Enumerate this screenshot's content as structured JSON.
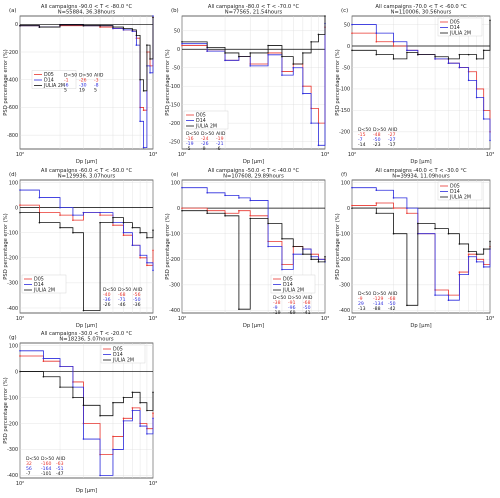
{
  "figure": {
    "common": {
      "xlabel": "Dp [μm]",
      "ylabel": "PSD percentage error (%)",
      "legend_entries": [
        "D05",
        "D14",
        "JULIA 2M"
      ],
      "table_headers": [
        "D<50",
        "D>50",
        "AIID"
      ],
      "series_colors": {
        "D05": "#e8352e",
        "D14": "#2b2bdd",
        "JULIA 2M": "#111111"
      }
    }
  },
  "chart_data": [
    {
      "type": "line",
      "panel": "(a)",
      "title": "All campaigns -90.0 < T < -80.0 °C",
      "subtitle": "N=55884, 36.38hours",
      "x_scale": "log",
      "xlim": [
        100,
        1000
      ],
      "x_ticks": [
        "10²",
        "10³"
      ],
      "ylim": [
        -900,
        60
      ],
      "y_ticks": [
        0,
        -200,
        -400,
        -600,
        -800
      ],
      "legend_position": "center",
      "table": [
        [
          "-1",
          "-26",
          "-3"
        ],
        [
          "-6",
          "-30",
          "-8"
        ],
        [
          "5",
          "19",
          "5"
        ]
      ],
      "series": [
        {
          "name": "D05",
          "x": [
            100,
            140,
            200,
            300,
            400,
            500,
            600,
            700,
            750,
            800,
            850,
            900,
            950,
            1000
          ],
          "y": [
            -10,
            -20,
            -10,
            -10,
            -20,
            -30,
            -40,
            -50,
            -100,
            -600,
            -620,
            -200,
            -300,
            50
          ]
        },
        {
          "name": "D14",
          "x": [
            100,
            140,
            200,
            300,
            400,
            500,
            600,
            700,
            750,
            800,
            850,
            900,
            950,
            1000
          ],
          "y": [
            -10,
            -20,
            -5,
            -10,
            -10,
            -30,
            -40,
            -50,
            -150,
            -700,
            -890,
            -300,
            -350,
            60
          ]
        },
        {
          "name": "JULIA 2M",
          "x": [
            100,
            140,
            200,
            300,
            400,
            500,
            600,
            700,
            750,
            800,
            850,
            900,
            950,
            1000
          ],
          "y": [
            -10,
            -20,
            -5,
            -10,
            -10,
            -20,
            -30,
            -40,
            -80,
            -400,
            -480,
            -150,
            -250,
            50
          ]
        }
      ]
    },
    {
      "type": "line",
      "panel": "(b)",
      "title": "All campaigns -80.0 < T < -70.0 °C",
      "subtitle": "N=77565, 21.54hours",
      "x_scale": "log",
      "xlim": [
        100,
        1000
      ],
      "x_ticks": [
        "10²",
        "10³"
      ],
      "ylim": [
        -270,
        90
      ],
      "y_ticks": [
        50,
        0,
        -50,
        -100,
        -150,
        -200,
        -250
      ],
      "legend_position": "lower-left",
      "table": [
        [
          "-16",
          "-24",
          "-19"
        ],
        [
          "-19",
          "-26",
          "-21"
        ],
        [
          "-5",
          "-9",
          "-6"
        ]
      ],
      "series": [
        {
          "name": "D05",
          "x": [
            100,
            150,
            200,
            250,
            300,
            400,
            500,
            600,
            700,
            800,
            900,
            1000
          ],
          "y": [
            10,
            -5,
            -30,
            -20,
            -40,
            -10,
            -60,
            -40,
            -100,
            -160,
            -200,
            60
          ]
        },
        {
          "name": "D14",
          "x": [
            100,
            150,
            200,
            250,
            300,
            400,
            500,
            600,
            700,
            800,
            900,
            1000
          ],
          "y": [
            15,
            -5,
            -30,
            -20,
            -45,
            -15,
            -70,
            -50,
            -120,
            -200,
            -260,
            70
          ]
        },
        {
          "name": "JULIA 2M",
          "x": [
            100,
            150,
            200,
            250,
            300,
            400,
            500,
            600,
            700,
            800,
            900,
            1000
          ],
          "y": [
            20,
            5,
            -10,
            -20,
            -10,
            10,
            -20,
            -40,
            -10,
            20,
            40,
            90
          ]
        }
      ]
    },
    {
      "type": "line",
      "panel": "(c)",
      "title": "All campaigns -70.0 < T < -60.0 °C",
      "subtitle": "N=110006, 30.56hours",
      "x_scale": "log",
      "xlim": [
        100,
        1000
      ],
      "x_ticks": [
        "10²",
        "10³"
      ],
      "ylim": [
        -240,
        70
      ],
      "y_ticks": [
        50,
        0,
        -50,
        -100,
        -150,
        -200
      ],
      "legend_position": "top-right",
      "table": [
        [
          "-15",
          "-48",
          "-27"
        ],
        [
          "-7",
          "-50",
          "-27"
        ],
        [
          "-14",
          "-23",
          "-17"
        ]
      ],
      "series": [
        {
          "name": "D05",
          "x": [
            100,
            150,
            200,
            250,
            300,
            400,
            500,
            600,
            700,
            800,
            900,
            1000
          ],
          "y": [
            30,
            10,
            0,
            -10,
            -20,
            -30,
            -40,
            -50,
            -60,
            -100,
            -150,
            -200
          ]
        },
        {
          "name": "D14",
          "x": [
            100,
            150,
            200,
            250,
            300,
            400,
            500,
            600,
            700,
            800,
            900,
            1000
          ],
          "y": [
            50,
            30,
            10,
            -10,
            -20,
            -30,
            -40,
            -50,
            -80,
            -120,
            -170,
            -220
          ]
        },
        {
          "name": "JULIA 2M",
          "x": [
            100,
            150,
            200,
            250,
            300,
            400,
            500,
            600,
            700,
            800,
            900,
            1000
          ],
          "y": [
            -10,
            -20,
            -30,
            -15,
            -20,
            -25,
            -30,
            -20,
            -20,
            -30,
            -10,
            60
          ]
        }
      ]
    },
    {
      "type": "line",
      "panel": "(d)",
      "title": "All campaigns -60.0 < T < -50.0 °C",
      "subtitle": "N=129936, 3.07hours",
      "x_scale": "log",
      "xlim": [
        100,
        1000
      ],
      "x_ticks": [
        "10²",
        "10³"
      ],
      "ylim": [
        -420,
        110
      ],
      "y_ticks": [
        100,
        0,
        -100,
        -200,
        -300,
        -400
      ],
      "legend_position": "lower-left",
      "table": [
        [
          "-40",
          "-68",
          "-56"
        ],
        [
          "-36",
          "-71",
          "-50"
        ],
        [
          "-26",
          "-46",
          "-36"
        ]
      ],
      "series": [
        {
          "name": "D05",
          "x": [
            100,
            140,
            200,
            250,
            300,
            400,
            500,
            600,
            700,
            800,
            900,
            1000
          ],
          "y": [
            10,
            -20,
            -30,
            -50,
            -20,
            -30,
            -70,
            -110,
            -150,
            -200,
            -230,
            -170
          ]
        },
        {
          "name": "D14",
          "x": [
            100,
            140,
            200,
            250,
            300,
            400,
            500,
            600,
            700,
            800,
            900,
            1000
          ],
          "y": [
            70,
            40,
            0,
            -30,
            -20,
            -20,
            -60,
            -100,
            -150,
            -190,
            -220,
            -250
          ]
        },
        {
          "name": "JULIA 2M",
          "x": [
            100,
            140,
            200,
            250,
            300,
            400,
            500,
            600,
            700,
            800,
            900,
            1000
          ],
          "y": [
            -20,
            -60,
            -80,
            -100,
            -410,
            -60,
            -40,
            -60,
            -80,
            -100,
            -120,
            -90
          ]
        }
      ]
    },
    {
      "type": "line",
      "panel": "(e)",
      "title": "All campaigns -50.0 < T < -40.0 °C",
      "subtitle": "N=107608, 29.89hours",
      "x_scale": "log",
      "xlim": [
        100,
        1000
      ],
      "x_ticks": [
        "10²",
        "10³"
      ],
      "ylim": [
        -410,
        110
      ],
      "y_ticks": [
        100,
        0,
        -100,
        -200,
        -300,
        -400
      ],
      "legend_position": "lower-right",
      "table": [
        [
          "-38",
          "-91",
          "-68"
        ],
        [
          "-9",
          "-96",
          "-50"
        ],
        [
          "-19",
          "-69",
          "-41"
        ]
      ],
      "series": [
        {
          "name": "D05",
          "x": [
            100,
            150,
            200,
            250,
            300,
            400,
            500,
            600,
            700,
            800,
            900,
            1000
          ],
          "y": [
            0,
            -10,
            -20,
            -10,
            -30,
            -130,
            -220,
            -150,
            -160,
            -180,
            -200,
            -200
          ]
        },
        {
          "name": "D14",
          "x": [
            100,
            150,
            200,
            250,
            300,
            400,
            500,
            600,
            700,
            800,
            900,
            1000
          ],
          "y": [
            80,
            60,
            50,
            40,
            30,
            -150,
            -240,
            -180,
            -160,
            -190,
            -200,
            -210
          ]
        },
        {
          "name": "JULIA 2M",
          "x": [
            100,
            150,
            200,
            250,
            300,
            400,
            500,
            600,
            700,
            800,
            900,
            1000
          ],
          "y": [
            -10,
            -20,
            -30,
            -395,
            -40,
            -60,
            -120,
            -150,
            -180,
            -200,
            -210,
            -190
          ]
        }
      ]
    },
    {
      "type": "line",
      "panel": "(f)",
      "title": "All campaigns -40.0 < T < -30.0 °C",
      "subtitle": "N=39934, 11.09hours",
      "x_scale": "log",
      "xlim": [
        100,
        1000
      ],
      "x_ticks": [
        "10²",
        "10³"
      ],
      "ylim": [
        -410,
        110
      ],
      "y_ticks": [
        100,
        0,
        -100,
        -200,
        -300,
        -400
      ],
      "legend_position": "top-right",
      "table": [
        [
          "-9",
          "-129",
          "-68"
        ],
        [
          "29",
          "-134",
          "-50"
        ],
        [
          "-13",
          "-88",
          "-42"
        ]
      ],
      "series": [
        {
          "name": "D05",
          "x": [
            100,
            150,
            200,
            250,
            300,
            400,
            500,
            600,
            700,
            800,
            900,
            1000
          ],
          "y": [
            10,
            20,
            0,
            -20,
            -100,
            -320,
            -340,
            -250,
            -180,
            -200,
            -220,
            -150
          ]
        },
        {
          "name": "D14",
          "x": [
            100,
            150,
            200,
            250,
            300,
            400,
            500,
            600,
            700,
            800,
            900,
            1000
          ],
          "y": [
            80,
            70,
            40,
            0,
            -100,
            -340,
            -360,
            -260,
            -190,
            -210,
            -230,
            -160
          ]
        },
        {
          "name": "JULIA 2M",
          "x": [
            100,
            150,
            200,
            250,
            300,
            400,
            500,
            600,
            700,
            800,
            900,
            1000
          ],
          "y": [
            0,
            -20,
            -100,
            -380,
            -60,
            -80,
            -100,
            -140,
            -170,
            -180,
            -160,
            -130
          ]
        }
      ]
    },
    {
      "type": "line",
      "panel": "(g)",
      "title": "All campaigns -30.0 < T < -20.0 °C",
      "subtitle": "N=18236, 5.07hours",
      "x_scale": "log",
      "xlim": [
        100,
        1000
      ],
      "x_ticks": [
        "10²",
        "10³"
      ],
      "ylim": [
        -410,
        110
      ],
      "y_ticks": [
        100,
        0,
        -100,
        -200,
        -300,
        -400
      ],
      "legend_position": "top-right",
      "table": [
        [
          "32",
          "-160",
          "-63"
        ],
        [
          "56",
          "-164",
          "-51"
        ],
        [
          "-7",
          "-101",
          "-47"
        ]
      ],
      "series": [
        {
          "name": "D05",
          "x": [
            100,
            150,
            200,
            250,
            300,
            400,
            500,
            600,
            700,
            800,
            900,
            1000
          ],
          "y": [
            60,
            40,
            20,
            -40,
            -200,
            -320,
            -250,
            -180,
            -140,
            -200,
            -220,
            -160
          ]
        },
        {
          "name": "D14",
          "x": [
            100,
            150,
            200,
            250,
            300,
            400,
            500,
            600,
            700,
            800,
            900,
            1000
          ],
          "y": [
            80,
            50,
            20,
            -60,
            -260,
            -400,
            -300,
            -190,
            -150,
            -210,
            -240,
            -180
          ]
        },
        {
          "name": "JULIA 2M",
          "x": [
            100,
            150,
            200,
            250,
            300,
            400,
            500,
            600,
            700,
            800,
            900,
            1000
          ],
          "y": [
            0,
            -20,
            -60,
            -100,
            -130,
            -170,
            -120,
            -100,
            -80,
            -120,
            -150,
            -80
          ]
        }
      ]
    }
  ]
}
